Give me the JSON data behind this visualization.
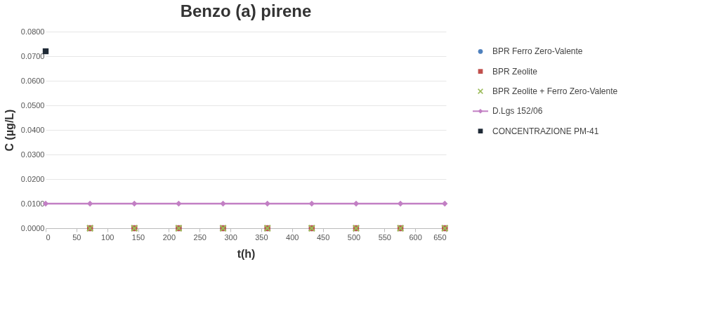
{
  "chart_data": {
    "type": "scatter",
    "title": "Benzo (a) pirene",
    "xlabel": "t(h)",
    "ylabel": "C (µg/L)",
    "xlim": [
      0,
      650
    ],
    "xticks": [
      0,
      50,
      100,
      150,
      200,
      250,
      300,
      350,
      400,
      450,
      500,
      550,
      600,
      650
    ],
    "ylim": [
      0,
      0.08
    ],
    "yticks": [
      {
        "value": 0,
        "label": "0.0000"
      },
      {
        "value": 0.01,
        "label": "0.0100"
      },
      {
        "value": 0.02,
        "label": "0.0200"
      },
      {
        "value": 0.03,
        "label": "0.0300"
      },
      {
        "value": 0.04,
        "label": "0.0400"
      },
      {
        "value": 0.05,
        "label": "0.0500"
      },
      {
        "value": 0.06,
        "label": "0.0600"
      },
      {
        "value": 0.07,
        "label": "0.0700"
      },
      {
        "value": 0.08,
        "label": "0.0800"
      }
    ],
    "grid": "y",
    "legend": "right",
    "series": [
      {
        "name": "BPR Ferro Zero-Valente",
        "marker": "circle",
        "color": "#4f81bd",
        "x": [
          72,
          144,
          216,
          288,
          360,
          432,
          504,
          576,
          648
        ],
        "values": [
          0,
          0,
          0,
          0,
          0,
          0,
          0,
          0,
          0
        ]
      },
      {
        "name": "BPR Zeolite",
        "marker": "square",
        "color": "#c0504d",
        "x": [
          72,
          144,
          216,
          288,
          360,
          432,
          504,
          576,
          648
        ],
        "values": [
          0,
          0,
          0,
          0,
          0,
          0,
          0,
          0,
          0
        ]
      },
      {
        "name": "BPR Zeolite + Ferro Zero-Valente",
        "marker": "cross",
        "color": "#9bbb59",
        "x": [
          72,
          144,
          216,
          288,
          360,
          432,
          504,
          576,
          648
        ],
        "values": [
          0,
          0,
          0,
          0,
          0,
          0,
          0,
          0,
          0
        ]
      },
      {
        "name": "D.Lgs 152/06",
        "type": "line",
        "marker": "diamond",
        "color": "#c27fc4",
        "x": [
          0,
          72,
          144,
          216,
          288,
          360,
          432,
          504,
          576,
          648
        ],
        "values": [
          0.01,
          0.01,
          0.01,
          0.01,
          0.01,
          0.01,
          0.01,
          0.01,
          0.01,
          0.01
        ]
      },
      {
        "name": "CONCENTRAZIONE PM-41",
        "marker": "square",
        "color": "#1f2a36",
        "x": [
          0
        ],
        "values": [
          0.072
        ]
      }
    ]
  }
}
